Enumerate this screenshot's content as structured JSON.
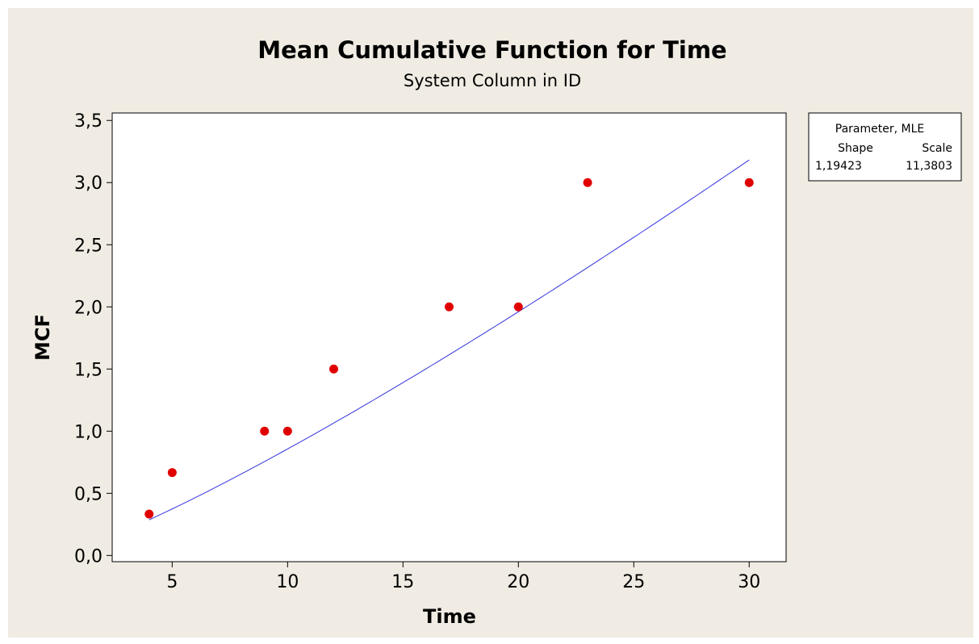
{
  "chart_data": {
    "type": "scatter",
    "title": "Mean Cumulative Function for Time",
    "subtitle": "System Column in ID",
    "xlabel": "Time",
    "ylabel": "MCF",
    "xlim": [
      2.4,
      31.6
    ],
    "ylim": [
      -0.05,
      3.56
    ],
    "x_ticks": [
      5,
      10,
      15,
      20,
      25,
      30
    ],
    "y_ticks": [
      0.0,
      0.5,
      1.0,
      1.5,
      2.0,
      2.5,
      3.0,
      3.5
    ],
    "x_tick_labels": [
      "5",
      "10",
      "15",
      "20",
      "25",
      "30"
    ],
    "y_tick_labels": [
      "0,0",
      "0,5",
      "1,0",
      "1,5",
      "2,0",
      "2,5",
      "3,0",
      "3,5"
    ],
    "grid": false,
    "series": [
      {
        "type": "scatter",
        "color": "#e00000",
        "points": [
          {
            "x": 4,
            "y": 0.333
          },
          {
            "x": 5,
            "y": 0.667
          },
          {
            "x": 9,
            "y": 1.0
          },
          {
            "x": 10,
            "y": 1.0
          },
          {
            "x": 12,
            "y": 1.5
          },
          {
            "x": 17,
            "y": 2.0
          },
          {
            "x": 20,
            "y": 2.0
          },
          {
            "x": 23,
            "y": 3.0
          },
          {
            "x": 30,
            "y": 3.0
          }
        ]
      },
      {
        "type": "line",
        "color": "#3333dd",
        "model": "power-law",
        "shape": 1.19423,
        "scale": 11.3803,
        "x_range": [
          4,
          30
        ]
      }
    ],
    "legend": {
      "position": "top-right",
      "header": "Parameter, MLE",
      "col1_header": "Shape",
      "col2_header": "Scale",
      "col1_value": "1,19423",
      "col2_value": "11,3803"
    }
  }
}
